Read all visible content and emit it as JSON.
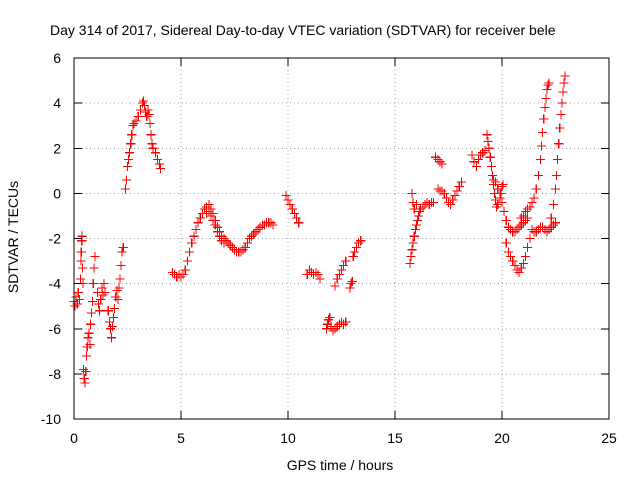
{
  "chart_data": {
    "type": "scatter",
    "title": "Day 314 of 2017, Sidereal Day-to-day VTEC variation (SDTVAR) for receiver bele",
    "xlabel": "GPS time / hours",
    "ylabel": "SDTVAR / TECUs",
    "xlim": [
      0,
      25
    ],
    "ylim": [
      -10,
      6
    ],
    "x_ticks": [
      0,
      5,
      10,
      15,
      20,
      25
    ],
    "y_ticks": [
      -10,
      -8,
      -6,
      -4,
      -2,
      0,
      2,
      4,
      6
    ],
    "x_tick_labels": [
      "0",
      "5",
      "10",
      "15",
      "20",
      "25"
    ],
    "y_tick_labels": [
      "-10",
      "-8",
      "-6",
      "-4",
      "-2",
      "0",
      "2",
      "4",
      "6"
    ],
    "grid": true,
    "marker": "plus",
    "colors": {
      "points": "#ff0000",
      "frame": "#000000",
      "grid": "#a0a0a0",
      "background": "#ffffff"
    },
    "series": [
      {
        "name": "SDTVAR",
        "points": [
          [
            0.0,
            -4.8
          ],
          [
            0.05,
            -5.0
          ],
          [
            0.1,
            -4.6
          ],
          [
            0.15,
            -4.9
          ],
          [
            0.2,
            -4.4
          ],
          [
            0.25,
            -4.7
          ],
          [
            0.3,
            -3.8
          ],
          [
            0.32,
            -3.0
          ],
          [
            0.34,
            -2.6
          ],
          [
            0.36,
            -2.1
          ],
          [
            0.38,
            -1.9
          ],
          [
            0.4,
            -3.3
          ],
          [
            0.42,
            -4.0
          ],
          [
            0.45,
            -7.8
          ],
          [
            0.48,
            -8.2
          ],
          [
            0.52,
            -8.4
          ],
          [
            0.55,
            -7.9
          ],
          [
            0.58,
            -7.2
          ],
          [
            0.62,
            -6.8
          ],
          [
            0.66,
            -6.4
          ],
          [
            0.7,
            -6.2
          ],
          [
            0.74,
            -6.7
          ],
          [
            0.78,
            -5.8
          ],
          [
            0.82,
            -5.3
          ],
          [
            0.86,
            -4.8
          ],
          [
            0.9,
            -4.0
          ],
          [
            0.94,
            -3.3
          ],
          [
            0.98,
            -2.8
          ],
          [
            1.1,
            -4.4
          ],
          [
            1.15,
            -4.9
          ],
          [
            1.2,
            -5.2
          ],
          [
            1.25,
            -4.7
          ],
          [
            1.3,
            -4.2
          ],
          [
            1.35,
            -4.5
          ],
          [
            1.4,
            -4.0
          ],
          [
            1.45,
            -4.4
          ],
          [
            1.6,
            -5.2
          ],
          [
            1.65,
            -5.7
          ],
          [
            1.7,
            -6.0
          ],
          [
            1.75,
            -6.4
          ],
          [
            1.8,
            -5.9
          ],
          [
            1.85,
            -5.5
          ],
          [
            1.9,
            -5.1
          ],
          [
            1.95,
            -4.6
          ],
          [
            2.0,
            -4.3
          ],
          [
            2.05,
            -4.7
          ],
          [
            2.1,
            -4.2
          ],
          [
            2.15,
            -3.8
          ],
          [
            2.2,
            -3.2
          ],
          [
            2.25,
            -2.6
          ],
          [
            2.3,
            -2.4
          ],
          [
            2.4,
            0.2
          ],
          [
            2.45,
            0.6
          ],
          [
            2.5,
            1.2
          ],
          [
            2.55,
            1.5
          ],
          [
            2.6,
            1.8
          ],
          [
            2.65,
            2.2
          ],
          [
            2.7,
            2.6
          ],
          [
            2.75,
            3.0
          ],
          [
            2.8,
            3.1
          ],
          [
            2.9,
            3.2
          ],
          [
            3.0,
            3.4
          ],
          [
            3.1,
            3.7
          ],
          [
            3.2,
            4.0
          ],
          [
            3.25,
            4.1
          ],
          [
            3.3,
            3.9
          ],
          [
            3.35,
            3.6
          ],
          [
            3.4,
            3.4
          ],
          [
            3.45,
            3.7
          ],
          [
            3.5,
            3.5
          ],
          [
            3.55,
            3.1
          ],
          [
            3.6,
            2.6
          ],
          [
            3.65,
            2.2
          ],
          [
            3.7,
            2.0
          ],
          [
            3.8,
            1.8
          ],
          [
            3.9,
            1.5
          ],
          [
            4.0,
            1.3
          ],
          [
            4.05,
            1.1
          ],
          [
            4.6,
            -3.5
          ],
          [
            4.7,
            -3.6
          ],
          [
            4.8,
            -3.7
          ],
          [
            4.9,
            -3.6
          ],
          [
            5.0,
            -3.7
          ],
          [
            5.1,
            -3.6
          ],
          [
            5.2,
            -3.4
          ],
          [
            5.3,
            -3.0
          ],
          [
            5.4,
            -2.6
          ],
          [
            5.5,
            -2.2
          ],
          [
            5.6,
            -1.9
          ],
          [
            5.7,
            -1.6
          ],
          [
            5.8,
            -1.3
          ],
          [
            5.9,
            -1.1
          ],
          [
            6.0,
            -0.9
          ],
          [
            6.1,
            -0.7
          ],
          [
            6.2,
            -0.6
          ],
          [
            6.3,
            -0.5
          ],
          [
            6.4,
            -0.7
          ],
          [
            6.5,
            -0.9
          ],
          [
            6.6,
            -1.2
          ],
          [
            6.7,
            -1.5
          ],
          [
            6.8,
            -1.7
          ],
          [
            6.9,
            -1.9
          ],
          [
            7.0,
            -2.0
          ],
          [
            7.1,
            -2.1
          ],
          [
            7.2,
            -2.2
          ],
          [
            7.3,
            -2.3
          ],
          [
            7.4,
            -2.4
          ],
          [
            7.5,
            -2.5
          ],
          [
            7.6,
            -2.6
          ],
          [
            7.7,
            -2.6
          ],
          [
            7.8,
            -2.6
          ],
          [
            7.9,
            -2.5
          ],
          [
            8.0,
            -2.4
          ],
          [
            8.1,
            -2.2
          ],
          [
            8.2,
            -2.0
          ],
          [
            8.3,
            -1.9
          ],
          [
            8.4,
            -1.8
          ],
          [
            8.5,
            -1.7
          ],
          [
            8.6,
            -1.6
          ],
          [
            8.7,
            -1.5
          ],
          [
            8.8,
            -1.4
          ],
          [
            8.9,
            -1.4
          ],
          [
            9.0,
            -1.3
          ],
          [
            9.1,
            -1.3
          ],
          [
            9.2,
            -1.3
          ],
          [
            9.3,
            -1.4
          ],
          [
            6.2,
            -0.9
          ],
          [
            6.3,
            -0.8
          ],
          [
            6.4,
            -1.0
          ],
          [
            6.5,
            -1.2
          ],
          [
            6.6,
            -1.4
          ],
          [
            6.7,
            -1.7
          ],
          [
            6.8,
            -1.9
          ],
          [
            6.9,
            -2.1
          ],
          [
            7.0,
            -2.2
          ],
          [
            9.9,
            -0.1
          ],
          [
            10.0,
            -0.3
          ],
          [
            10.1,
            -0.5
          ],
          [
            10.2,
            -0.7
          ],
          [
            10.3,
            -0.9
          ],
          [
            10.4,
            -1.1
          ],
          [
            10.5,
            -1.3
          ],
          [
            10.9,
            -3.6
          ],
          [
            11.0,
            -3.4
          ],
          [
            11.1,
            -3.5
          ],
          [
            11.2,
            -3.6
          ],
          [
            11.3,
            -3.5
          ],
          [
            11.4,
            -3.6
          ],
          [
            11.5,
            -3.8
          ],
          [
            11.8,
            -6.0
          ],
          [
            11.85,
            -5.8
          ],
          [
            11.9,
            -5.6
          ],
          [
            11.95,
            -5.5
          ],
          [
            12.0,
            -5.9
          ],
          [
            12.1,
            -6.1
          ],
          [
            12.2,
            -6.0
          ],
          [
            12.3,
            -5.9
          ],
          [
            12.4,
            -5.8
          ],
          [
            12.5,
            -5.7
          ],
          [
            12.6,
            -5.8
          ],
          [
            12.7,
            -5.7
          ],
          [
            12.2,
            -4.1
          ],
          [
            12.3,
            -3.8
          ],
          [
            12.4,
            -3.6
          ],
          [
            12.5,
            -3.4
          ],
          [
            12.6,
            -3.2
          ],
          [
            12.7,
            -3.0
          ],
          [
            12.9,
            -4.2
          ],
          [
            12.95,
            -4.0
          ],
          [
            13.0,
            -3.9
          ],
          [
            13.05,
            -2.8
          ],
          [
            13.1,
            -2.6
          ],
          [
            13.2,
            -2.4
          ],
          [
            13.3,
            -2.2
          ],
          [
            13.4,
            -2.1
          ],
          [
            15.7,
            -3.1
          ],
          [
            15.75,
            -2.8
          ],
          [
            15.8,
            -2.5
          ],
          [
            15.85,
            -2.2
          ],
          [
            15.9,
            -1.9
          ],
          [
            15.95,
            -1.6
          ],
          [
            16.0,
            -1.4
          ],
          [
            16.05,
            -1.2
          ],
          [
            16.1,
            -1.0
          ],
          [
            16.15,
            -0.8
          ],
          [
            16.2,
            -0.7
          ],
          [
            16.3,
            -0.6
          ],
          [
            16.4,
            -0.5
          ],
          [
            16.5,
            -0.4
          ],
          [
            16.6,
            -0.5
          ],
          [
            16.7,
            -0.4
          ],
          [
            16.8,
            -0.4
          ],
          [
            15.8,
            0.0
          ],
          [
            15.85,
            -0.4
          ],
          [
            15.9,
            -0.7
          ],
          [
            16.0,
            -0.5
          ],
          [
            16.9,
            1.6
          ],
          [
            17.0,
            1.5
          ],
          [
            17.1,
            1.4
          ],
          [
            17.2,
            1.3
          ],
          [
            17.0,
            0.2
          ],
          [
            17.1,
            0.1
          ],
          [
            17.2,
            0.1
          ],
          [
            17.3,
            0.0
          ],
          [
            17.4,
            -0.2
          ],
          [
            17.5,
            -0.4
          ],
          [
            17.6,
            -0.5
          ],
          [
            17.7,
            -0.3
          ],
          [
            17.8,
            -0.1
          ],
          [
            17.9,
            0.1
          ],
          [
            18.0,
            0.3
          ],
          [
            18.1,
            0.5
          ],
          [
            18.6,
            1.7
          ],
          [
            18.7,
            1.4
          ],
          [
            18.8,
            1.2
          ],
          [
            18.9,
            1.5
          ],
          [
            19.0,
            1.7
          ],
          [
            19.1,
            1.8
          ],
          [
            19.2,
            1.9
          ],
          [
            19.3,
            2.6
          ],
          [
            19.35,
            2.3
          ],
          [
            19.4,
            2.0
          ],
          [
            19.45,
            1.6
          ],
          [
            19.5,
            1.2
          ],
          [
            19.55,
            0.8
          ],
          [
            19.6,
            0.4
          ],
          [
            19.65,
            0.0
          ],
          [
            19.7,
            -0.3
          ],
          [
            19.75,
            -0.6
          ],
          [
            19.8,
            -0.5
          ],
          [
            19.9,
            -0.2
          ],
          [
            19.95,
            0.0
          ],
          [
            20.0,
            0.3
          ],
          [
            20.05,
            0.4
          ],
          [
            19.6,
            0.6
          ],
          [
            19.7,
            0.5
          ],
          [
            19.8,
            0.2
          ],
          [
            19.9,
            0.0
          ],
          [
            20.0,
            -0.4
          ],
          [
            20.1,
            -0.8
          ],
          [
            20.2,
            -1.2
          ],
          [
            20.3,
            -1.5
          ],
          [
            20.4,
            -1.6
          ],
          [
            20.5,
            -1.7
          ],
          [
            20.6,
            -1.7
          ],
          [
            20.7,
            -1.6
          ],
          [
            20.8,
            -1.5
          ],
          [
            20.9,
            -1.4
          ],
          [
            21.0,
            -1.3
          ],
          [
            21.1,
            -1.2
          ],
          [
            21.2,
            -1.1
          ],
          [
            20.2,
            -2.2
          ],
          [
            20.3,
            -2.6
          ],
          [
            20.4,
            -2.8
          ],
          [
            20.5,
            -3.0
          ],
          [
            20.6,
            -3.2
          ],
          [
            20.7,
            -3.4
          ],
          [
            20.8,
            -3.5
          ],
          [
            20.9,
            -3.3
          ],
          [
            21.0,
            -3.1
          ],
          [
            21.1,
            -2.8
          ],
          [
            21.2,
            -2.4
          ],
          [
            21.3,
            -2.0
          ],
          [
            20.9,
            -1.1
          ],
          [
            21.0,
            -1.0
          ],
          [
            21.1,
            -0.8
          ],
          [
            21.2,
            -0.7
          ],
          [
            21.3,
            -0.6
          ],
          [
            21.4,
            -0.4
          ],
          [
            21.5,
            -0.2
          ],
          [
            21.6,
            0.2
          ],
          [
            21.7,
            0.8
          ],
          [
            21.8,
            1.5
          ],
          [
            21.85,
            2.1
          ],
          [
            21.9,
            2.7
          ],
          [
            21.95,
            3.3
          ],
          [
            22.0,
            3.8
          ],
          [
            22.05,
            4.2
          ],
          [
            22.1,
            4.6
          ],
          [
            22.15,
            4.8
          ],
          [
            22.2,
            4.9
          ],
          [
            21.4,
            -1.6
          ],
          [
            21.5,
            -1.7
          ],
          [
            21.6,
            -1.7
          ],
          [
            21.7,
            -1.6
          ],
          [
            21.8,
            -1.5
          ],
          [
            21.9,
            -1.5
          ],
          [
            22.0,
            -1.6
          ],
          [
            22.1,
            -1.7
          ],
          [
            22.2,
            -1.6
          ],
          [
            22.3,
            -1.5
          ],
          [
            22.4,
            -1.4
          ],
          [
            22.5,
            -1.3
          ],
          [
            22.3,
            -1.1
          ],
          [
            22.4,
            -0.5
          ],
          [
            22.5,
            0.2
          ],
          [
            22.55,
            0.8
          ],
          [
            22.6,
            1.5
          ],
          [
            22.65,
            2.2
          ],
          [
            22.7,
            2.9
          ],
          [
            22.75,
            3.5
          ],
          [
            22.8,
            4.0
          ],
          [
            22.85,
            4.5
          ],
          [
            22.9,
            4.9
          ],
          [
            22.95,
            5.2
          ]
        ]
      }
    ]
  }
}
